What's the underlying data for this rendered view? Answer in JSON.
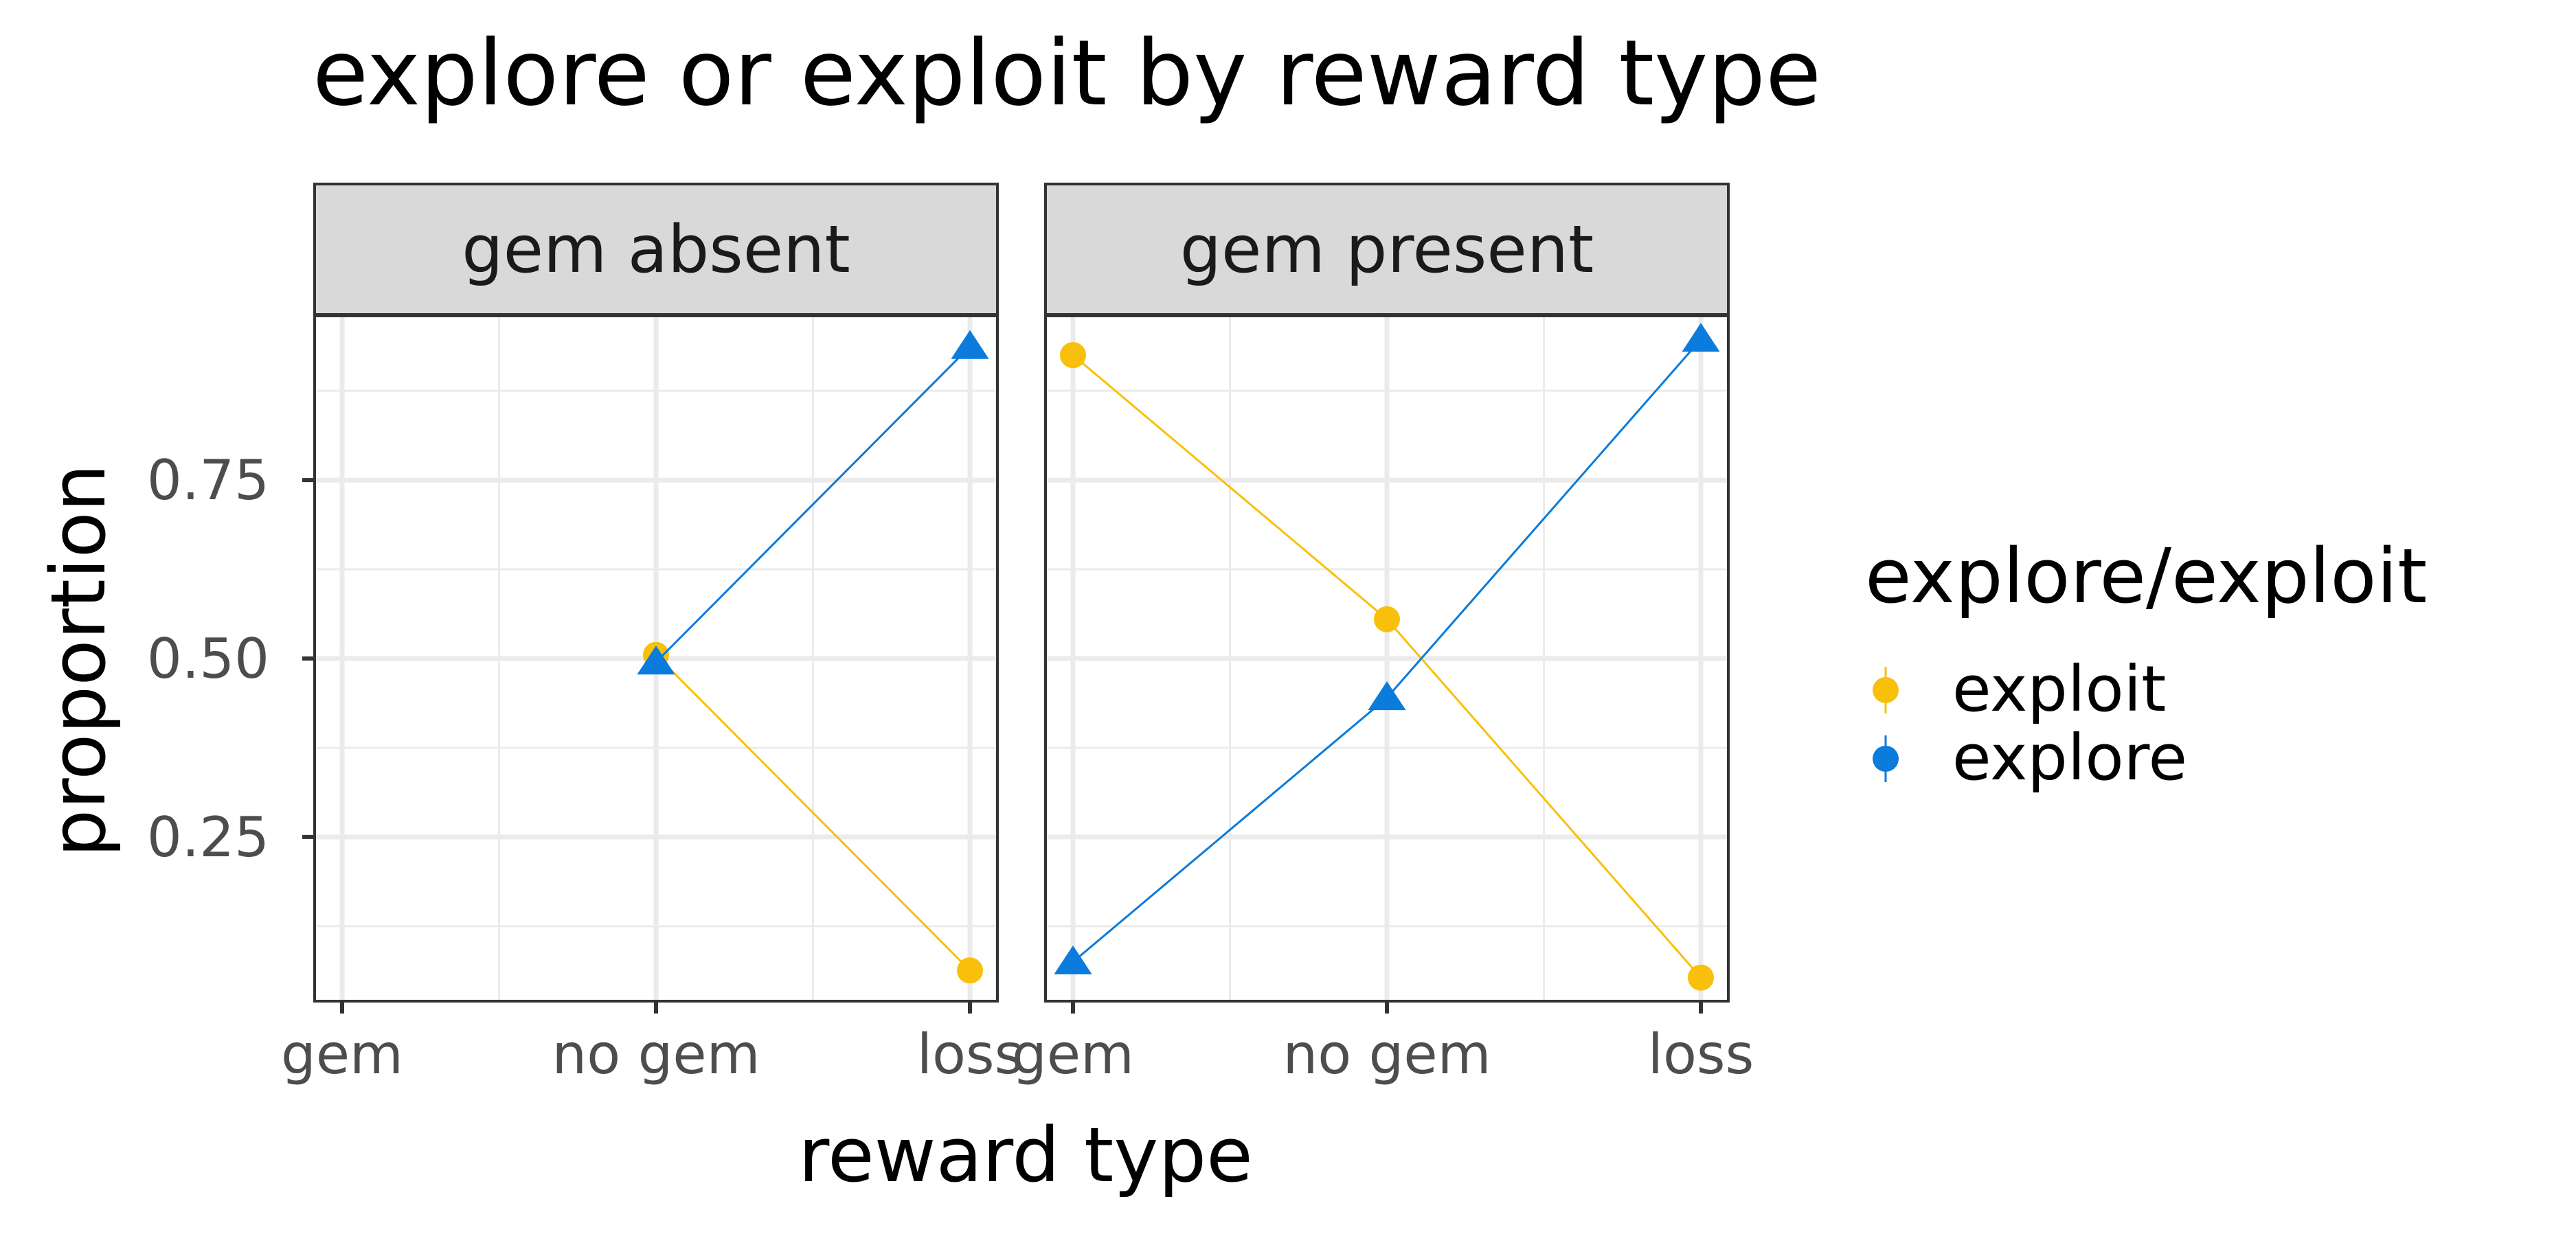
{
  "chart_data": {
    "type": "line",
    "title": "explore or exploit by reward type",
    "xlabel": "reward type",
    "ylabel": "proportion",
    "categories": [
      "gem",
      "no gem",
      "loss"
    ],
    "y_ticks": [
      "0.25",
      "0.50",
      "0.75"
    ],
    "ylim": [
      0.02,
      0.98
    ],
    "grid": true,
    "legend": {
      "title": "explore/exploit",
      "placement": "right",
      "entries": [
        "exploit",
        "explore"
      ]
    },
    "colors": {
      "exploit": "#F9C00B",
      "explore": "#0B7BDC"
    },
    "panels": [
      {
        "label": "gem absent",
        "series": [
          {
            "name": "exploit",
            "marker": "circle",
            "values": [
              null,
              0.505,
              0.063
            ]
          },
          {
            "name": "explore",
            "marker": "triangle",
            "values": [
              null,
              0.495,
              0.937
            ]
          }
        ]
      },
      {
        "label": "gem present",
        "series": [
          {
            "name": "exploit",
            "marker": "circle",
            "values": [
              0.925,
              0.555,
              0.053
            ]
          },
          {
            "name": "explore",
            "marker": "triangle",
            "values": [
              0.075,
              0.445,
              0.947
            ]
          }
        ]
      }
    ]
  }
}
